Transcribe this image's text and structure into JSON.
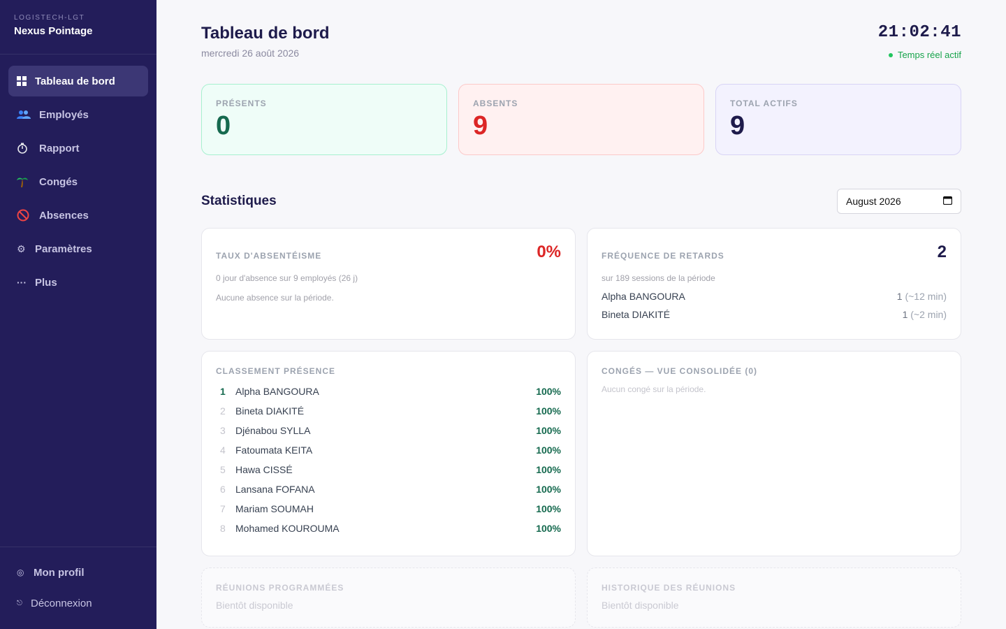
{
  "brand": {
    "org": "LOGISTECH-LGT",
    "name": "Nexus Pointage"
  },
  "sidebar": {
    "items": [
      {
        "label": "Tableau de bord",
        "icon": "dashboard-icon"
      },
      {
        "label": "Employés",
        "icon": "people-icon"
      },
      {
        "label": "Rapport",
        "icon": "stopwatch-icon"
      },
      {
        "label": "Congés",
        "icon": "palm-tree-icon"
      },
      {
        "label": "Absences",
        "icon": "prohibited-icon"
      },
      {
        "label": "Paramètres",
        "icon": "gear-icon"
      },
      {
        "label": "Plus",
        "icon": "more-icon"
      }
    ],
    "bottom": [
      {
        "label": "Mon profil",
        "icon": "profile-icon"
      },
      {
        "label": "Déconnexion",
        "icon": "logout-icon"
      }
    ]
  },
  "header": {
    "title": "Tableau de bord",
    "date": "mercredi 26 août 2026",
    "clock": "21:02:41",
    "live": "Temps réel actif"
  },
  "kpis": {
    "present": {
      "label": "PRÉSENTS",
      "value": "0"
    },
    "absent": {
      "label": "ABSENTS",
      "value": "9"
    },
    "total": {
      "label": "TOTAL ACTIFS",
      "value": "9"
    }
  },
  "stats": {
    "title": "Statistiques",
    "month": "August 2026"
  },
  "absenteeism": {
    "label": "TAUX D'ABSENTÉISME",
    "value": "0%",
    "sub": "0 jour d'absence sur 9 employés (26 j)",
    "empty": "Aucune absence sur la période."
  },
  "lateness": {
    "label": "FRÉQUENCE DE RETARDS",
    "value": "2",
    "sub": "sur 189 sessions de la période",
    "rows": [
      {
        "name": "Alpha BANGOURA",
        "count": "1",
        "minutes": "(~12 min)"
      },
      {
        "name": "Bineta DIAKITÉ",
        "count": "1",
        "minutes": "(~2 min)"
      }
    ]
  },
  "ranking": {
    "label": "CLASSEMENT PRÉSENCE",
    "rows": [
      {
        "rank": "1",
        "name": "Alpha BANGOURA",
        "pct": "100%"
      },
      {
        "rank": "2",
        "name": "Bineta DIAKITÉ",
        "pct": "100%"
      },
      {
        "rank": "3",
        "name": "Djénabou SYLLA",
        "pct": "100%"
      },
      {
        "rank": "4",
        "name": "Fatoumata KEITA",
        "pct": "100%"
      },
      {
        "rank": "5",
        "name": "Hawa CISSÉ",
        "pct": "100%"
      },
      {
        "rank": "6",
        "name": "Lansana FOFANA",
        "pct": "100%"
      },
      {
        "rank": "7",
        "name": "Mariam SOUMAH",
        "pct": "100%"
      },
      {
        "rank": "8",
        "name": "Mohamed KOUROUMA",
        "pct": "100%"
      }
    ]
  },
  "leaves": {
    "label": "CONGÉS — VUE CONSOLIDÉE (0)",
    "empty": "Aucun congé sur la période."
  },
  "meetings": {
    "label": "RÉUNIONS PROGRAMMÉES",
    "soon": "Bientôt disponible"
  },
  "history": {
    "label": "HISTORIQUE DES RÉUNIONS",
    "soon": "Bientôt disponible"
  },
  "colors": {
    "sidebar": "#231d5a",
    "accent": "#1e1b4b",
    "present": "#166a4f",
    "absent": "#dc2626",
    "live": "#16a34a"
  }
}
